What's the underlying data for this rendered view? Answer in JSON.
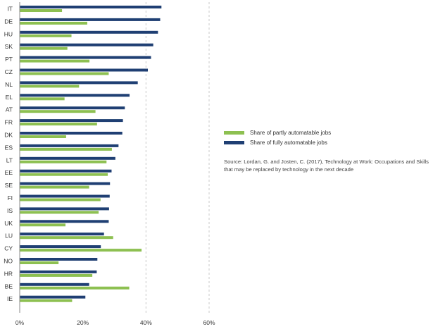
{
  "chart_data": {
    "type": "bar",
    "orientation": "horizontal",
    "categories": [
      "IT",
      "DE",
      "HU",
      "SK",
      "PT",
      "CZ",
      "NL",
      "EL",
      "AT",
      "FR",
      "DK",
      "ES",
      "LT",
      "EE",
      "SE",
      "FI",
      "IS",
      "UK",
      "LU",
      "CY",
      "NO",
      "HR",
      "BE",
      "IE"
    ],
    "series": [
      {
        "name": "Share of fully automatable jobs",
        "color": "#1f3f73",
        "values": [
          44.9,
          44.5,
          43.8,
          42.3,
          41.6,
          40.6,
          37.4,
          34.8,
          33.3,
          32.7,
          32.5,
          31.3,
          30.3,
          29.1,
          28.6,
          28.5,
          28.3,
          28.2,
          26.7,
          25.7,
          24.6,
          24.4,
          22.0,
          20.8
        ]
      },
      {
        "name": "Share of partly automatable jobs",
        "color": "#8dc051",
        "values": [
          13.4,
          21.4,
          16.4,
          15.1,
          22.1,
          28.2,
          18.8,
          14.2,
          24.0,
          24.5,
          14.7,
          29.2,
          27.5,
          27.9,
          22.0,
          25.6,
          25.0,
          14.5,
          29.6,
          38.6,
          12.3,
          23.0,
          34.7,
          16.6
        ]
      }
    ],
    "xlim": [
      0,
      60
    ],
    "xticks": [
      0,
      20,
      40,
      60
    ],
    "xtick_labels": [
      "0%",
      "20%",
      "40%",
      "60%"
    ],
    "grid": "vertical dashed at 40% and 60%",
    "legend_position": "right-middle",
    "title": "",
    "xlabel": "",
    "ylabel": ""
  },
  "legend": {
    "partly_label": "Share of partly automatable jobs",
    "fully_label": "Share of fully automatable jobs",
    "partly_color": "#8dc051",
    "fully_color": "#1f3f73"
  },
  "source": {
    "text": "Source: Lordan, G. and Josten, C. (2017), Technology at Work: Occupations and Skills that may be replaced by technology in the next decade"
  }
}
